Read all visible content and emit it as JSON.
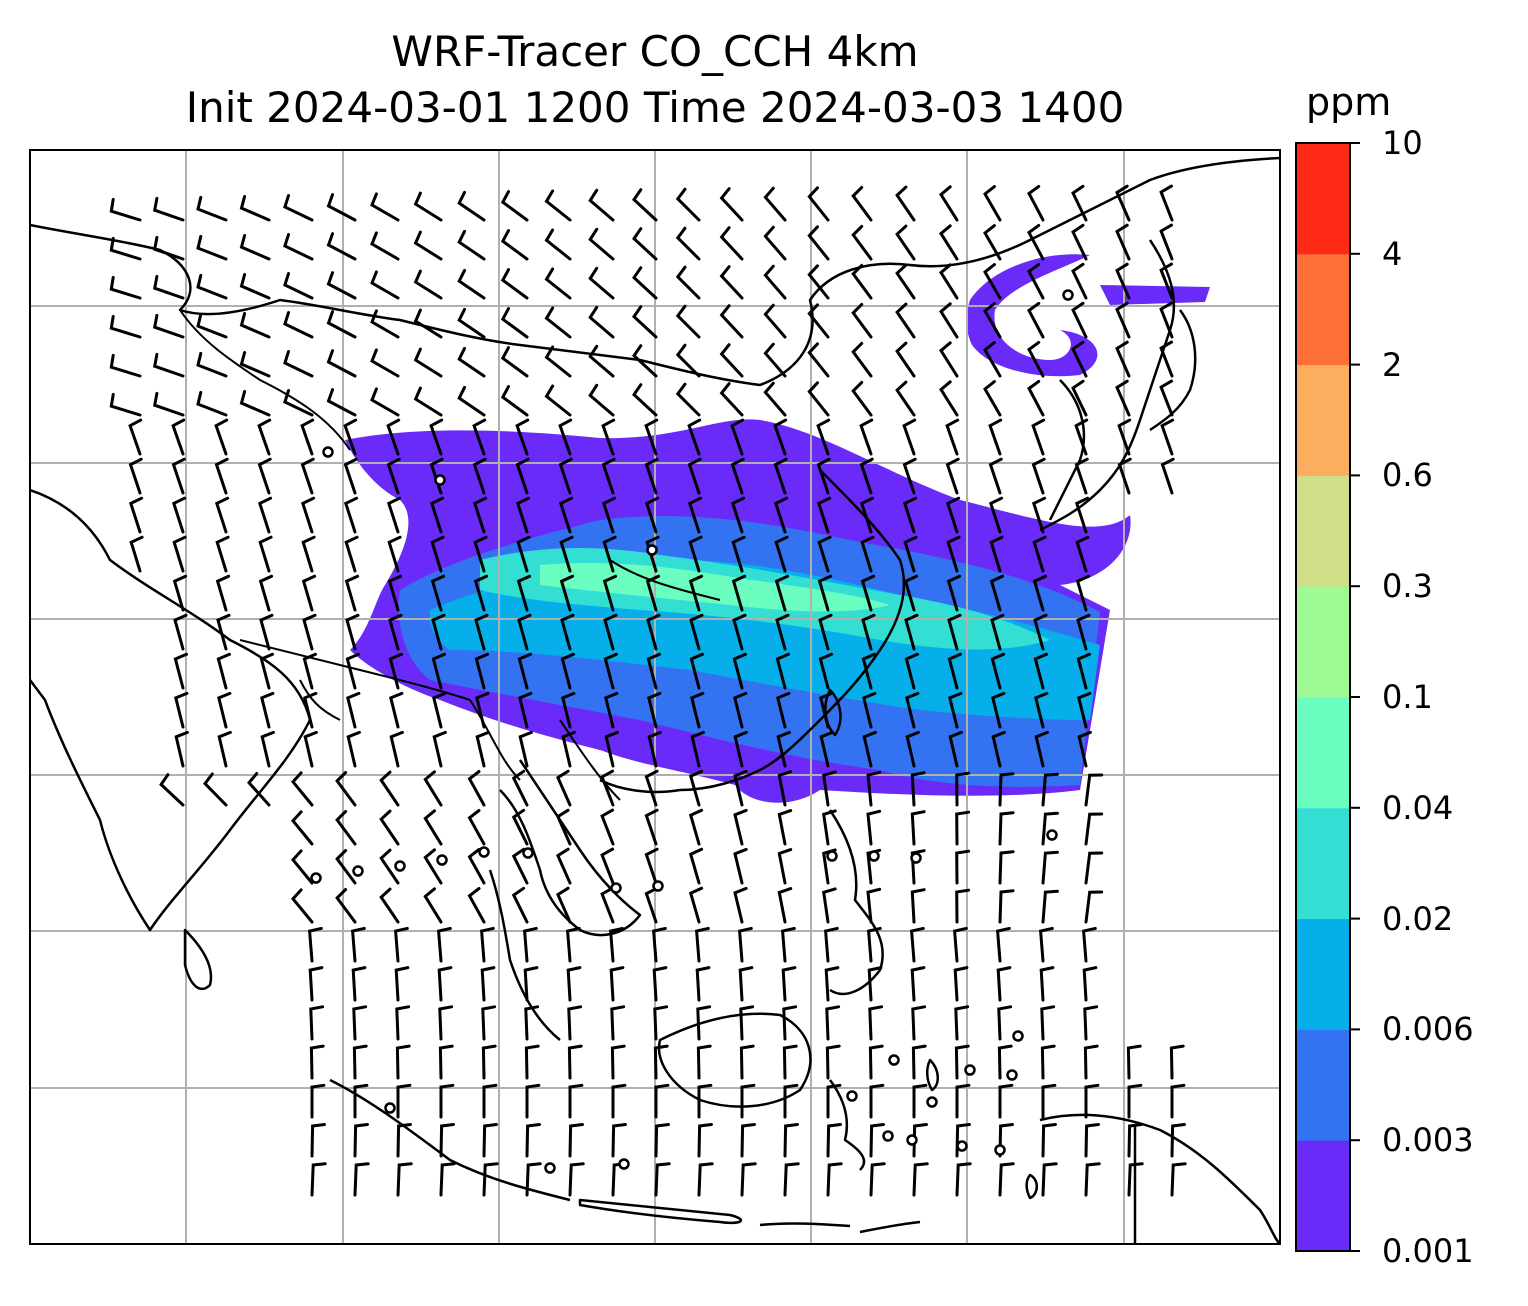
{
  "title_line1": "WRF-Tracer CO_CCH 4km",
  "title_line2": "Init 2024-03-01 1200 Time 2024-03-03 1400",
  "colorbar": {
    "unit": "ppm",
    "ticks": [
      "0.001",
      "0.003",
      "0.006",
      "0.02",
      "0.04",
      "0.1",
      "0.3",
      "0.6",
      "2",
      "4",
      "10"
    ],
    "colors": [
      "#6a2bf8",
      "#3373f2",
      "#06afe9",
      "#33dfd3",
      "#6affc0",
      "#9efa95",
      "#cfdf88",
      "#fdad5e",
      "#ff7038",
      "#fe2a16"
    ]
  },
  "map_layers": [
    "coastlines",
    "country-borders",
    "gridlines",
    "wind-barbs",
    "tracer-concentration-fill"
  ]
}
